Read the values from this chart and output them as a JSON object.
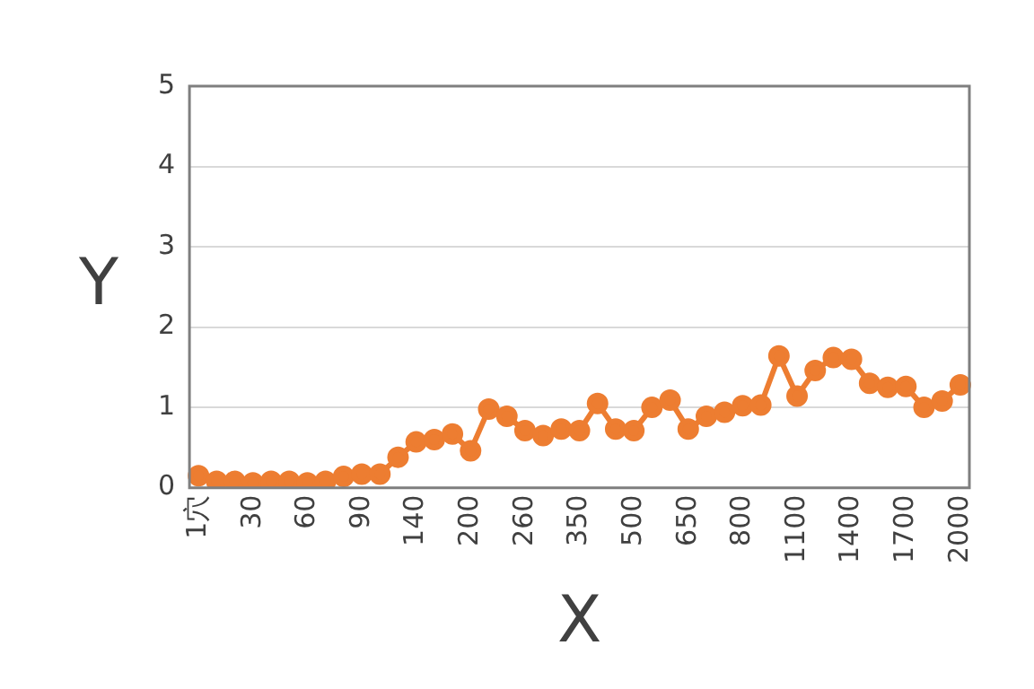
{
  "chart_data": {
    "type": "line",
    "xlabel": "X",
    "ylabel": "Y",
    "categories": [
      "1穴",
      null,
      null,
      "30",
      null,
      null,
      "60",
      null,
      null,
      "90",
      null,
      null,
      "140",
      null,
      null,
      "200",
      null,
      null,
      "260",
      null,
      null,
      "350",
      null,
      null,
      "500",
      null,
      null,
      "650",
      null,
      null,
      "800",
      null,
      null,
      "1100",
      null,
      null,
      "1400",
      null,
      null,
      "1700",
      null,
      null,
      "2000"
    ],
    "series": [
      {
        "color": "#ed7d31",
        "values": [
          0.15,
          0.08,
          0.08,
          0.06,
          0.08,
          0.08,
          0.06,
          0.08,
          0.14,
          0.17,
          0.17,
          0.38,
          0.57,
          0.6,
          0.67,
          0.46,
          0.98,
          0.89,
          0.71,
          0.65,
          0.73,
          0.71,
          1.05,
          0.73,
          0.71,
          1.0,
          1.09,
          0.73,
          0.89,
          0.94,
          1.02,
          1.03,
          1.64,
          1.14,
          1.46,
          1.62,
          1.6,
          1.3,
          1.25,
          1.26,
          1.0,
          1.08,
          1.28
        ]
      }
    ],
    "ylim": [
      0,
      5
    ],
    "yticks": [
      0,
      1,
      2,
      3,
      4,
      5
    ],
    "grid": "y",
    "legend": false,
    "marker": "circle",
    "line_style": "solid"
  }
}
